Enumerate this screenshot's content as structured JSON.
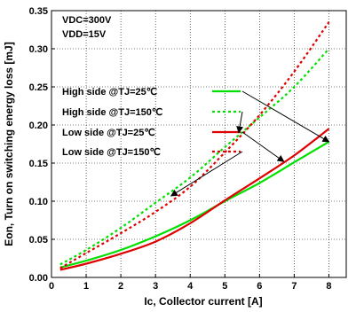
{
  "chart_data": {
    "type": "line",
    "xlabel": "Ic, Collector current [A]",
    "ylabel": "Eon, Turn on switching energy loss [mJ]",
    "xlim": [
      0,
      8.5
    ],
    "ylim": [
      0.0,
      0.35
    ],
    "x_ticks": [
      "0",
      "1",
      "2",
      "3",
      "4",
      "5",
      "6",
      "7",
      "8"
    ],
    "y_ticks": [
      "0.00",
      "0.05",
      "0.10",
      "0.15",
      "0.20",
      "0.25",
      "0.30",
      "0.35"
    ],
    "grid": true,
    "conditions": [
      "VDC=300V",
      "VDD=15V"
    ],
    "legend_position": "upper-left inside plot",
    "series": [
      {
        "name": "High side @TJ=25℃",
        "color": "#00e000",
        "dash": "solid",
        "x": [
          0.25,
          1,
          2,
          3,
          4,
          5,
          6,
          7,
          8
        ],
        "y": [
          0.013,
          0.022,
          0.036,
          0.054,
          0.075,
          0.1,
          0.124,
          0.151,
          0.178
        ]
      },
      {
        "name": "High side @TJ=150℃",
        "color": "#00e000",
        "dash": "dotted",
        "x": [
          0.25,
          1,
          2,
          3,
          4,
          5,
          6,
          7,
          8
        ],
        "y": [
          0.017,
          0.036,
          0.065,
          0.098,
          0.131,
          0.171,
          0.21,
          0.25,
          0.3
        ]
      },
      {
        "name": "Low side @TJ=25℃",
        "color": "#e00000",
        "dash": "solid",
        "x": [
          0.25,
          1,
          2,
          3,
          4,
          5,
          6,
          7,
          8
        ],
        "y": [
          0.01,
          0.018,
          0.031,
          0.047,
          0.071,
          0.101,
          0.13,
          0.16,
          0.195
        ]
      },
      {
        "name": "Low side @TJ=150℃",
        "color": "#e00000",
        "dash": "dotted",
        "x": [
          0.25,
          1,
          2,
          3,
          4,
          5,
          6,
          7,
          8
        ],
        "y": [
          0.012,
          0.032,
          0.058,
          0.086,
          0.119,
          0.164,
          0.213,
          0.27,
          0.335
        ]
      }
    ]
  }
}
